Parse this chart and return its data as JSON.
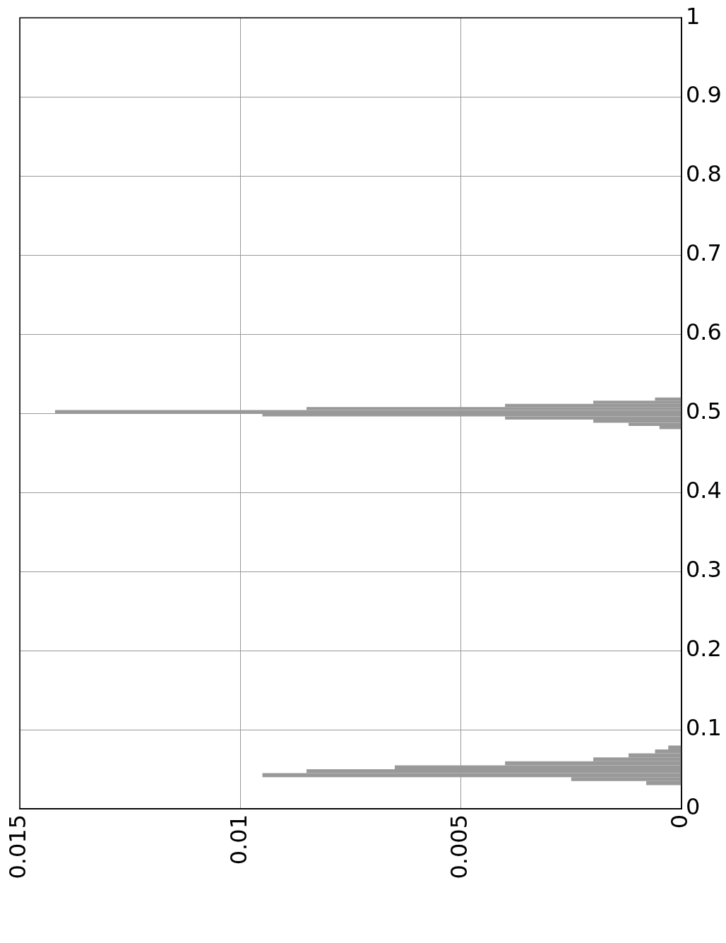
{
  "chart_data": {
    "type": "histogram",
    "orientation": "horizontal",
    "bins": [
      0.03,
      0.035,
      0.04,
      0.045,
      0.05,
      0.055,
      0.06,
      0.065,
      0.07,
      0.075,
      0.08,
      0.48,
      0.484,
      0.488,
      0.492,
      0.496,
      0.5,
      0.504,
      0.508,
      0.512,
      0.516,
      0.52
    ],
    "values": [
      0.0008,
      0.0025,
      0.0095,
      0.0085,
      0.0065,
      0.004,
      0.002,
      0.0012,
      0.0006,
      0.0003,
      0,
      0.0005,
      0.0012,
      0.002,
      0.004,
      0.0095,
      0.0142,
      0.0085,
      0.004,
      0.002,
      0.0006
    ],
    "color": "#999999",
    "xlim": [
      0.015,
      0
    ],
    "xticks": [
      0,
      0.005,
      0.01,
      0.015
    ],
    "ylim": [
      0,
      1
    ],
    "yticks": [
      0,
      0.1,
      0.2,
      0.3,
      0.4,
      0.5,
      0.6,
      0.7,
      0.8,
      0.9,
      1
    ],
    "grid": true,
    "legend": false
  }
}
